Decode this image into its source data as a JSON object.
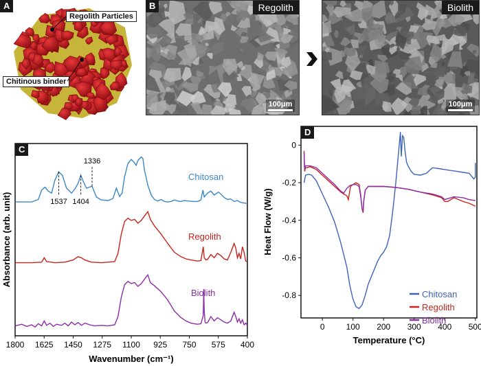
{
  "panel_a": {
    "label": "A",
    "callouts": {
      "particles": "Regolith Particles",
      "binder": "Chitinous binder"
    },
    "colors": {
      "particle": "#c8141a",
      "binder": "#c7b53a"
    }
  },
  "panel_b": {
    "label": "B",
    "images": [
      {
        "title": "Regolith",
        "scale": "100μm"
      },
      {
        "title": "Biolith",
        "scale": "100μm"
      }
    ],
    "arrow_icon": "chevron-right-icon"
  },
  "chart_data": [
    {
      "label": "C",
      "type": "line",
      "xlabel": "Wavenumber (cm⁻¹)",
      "ylabel": "Absorbance (arb. unit)",
      "xlim": [
        1800,
        400
      ],
      "xticks": [
        "1800",
        "1625",
        "1450",
        "1275",
        "1100",
        "925",
        "750",
        "575",
        "400"
      ],
      "annotations": [
        {
          "text": "1537",
          "x": 1537
        },
        {
          "text": "1404",
          "x": 1404
        },
        {
          "text": "1336",
          "x": 1336
        }
      ],
      "series": [
        {
          "name": "Chitosan",
          "color": "#3a86c8",
          "x": [
            1800,
            1700,
            1660,
            1640,
            1620,
            1600,
            1580,
            1560,
            1537,
            1515,
            1490,
            1460,
            1440,
            1420,
            1404,
            1390,
            1370,
            1336,
            1310,
            1280,
            1240,
            1210,
            1190,
            1170,
            1155,
            1140,
            1120,
            1100,
            1085,
            1070,
            1060,
            1040,
            1030,
            1020,
            1000,
            980,
            960,
            940,
            920,
            900,
            880,
            860,
            840,
            820,
            800,
            780,
            760,
            720,
            700,
            680,
            668,
            660,
            650,
            640,
            620,
            600,
            575,
            560,
            540,
            520,
            500,
            480,
            460,
            440,
            420,
            400
          ],
          "y": [
            0.04,
            0.04,
            0.09,
            0.28,
            0.34,
            0.26,
            0.22,
            0.48,
            0.65,
            0.58,
            0.32,
            0.22,
            0.3,
            0.42,
            0.58,
            0.46,
            0.32,
            0.36,
            0.14,
            0.08,
            0.07,
            0.11,
            0.32,
            0.15,
            0.22,
            0.55,
            0.82,
            0.9,
            0.85,
            0.78,
            0.88,
            0.95,
            0.92,
            0.68,
            0.38,
            0.18,
            0.09,
            0.06,
            0.09,
            0.05,
            0.04,
            0.05,
            0.08,
            0.06,
            0.05,
            0.07,
            0.06,
            0.05,
            0.05,
            0.08,
            0.28,
            0.14,
            0.18,
            0.22,
            0.26,
            0.18,
            0.24,
            0.2,
            0.13,
            0.09,
            0.1,
            0.05,
            0.07,
            0.03,
            0.02,
            0.01
          ]
        },
        {
          "name": "Regolith",
          "color": "#c8231c",
          "x": [
            1800,
            1700,
            1640,
            1625,
            1610,
            1560,
            1500,
            1450,
            1420,
            1400,
            1380,
            1340,
            1280,
            1240,
            1200,
            1180,
            1160,
            1140,
            1120,
            1100,
            1080,
            1060,
            1040,
            1020,
            1000,
            985,
            960,
            920,
            880,
            840,
            800,
            770,
            740,
            720,
            700,
            680,
            666,
            660,
            650,
            640,
            620,
            600,
            580,
            560,
            540,
            520,
            500,
            480,
            470,
            460,
            450,
            440,
            430,
            420,
            410,
            400
          ],
          "y": [
            0.03,
            0.03,
            0.04,
            0.12,
            0.05,
            0.03,
            0.04,
            0.08,
            0.14,
            0.12,
            0.08,
            0.04,
            0.03,
            0.04,
            0.05,
            0.2,
            0.55,
            0.78,
            0.84,
            0.8,
            0.82,
            0.75,
            0.8,
            0.88,
            0.96,
            0.82,
            0.7,
            0.55,
            0.38,
            0.22,
            0.14,
            0.1,
            0.08,
            0.07,
            0.06,
            0.07,
            0.32,
            0.12,
            0.08,
            0.09,
            0.18,
            0.12,
            0.2,
            0.16,
            0.1,
            0.08,
            0.22,
            0.38,
            0.3,
            0.12,
            0.2,
            0.1,
            0.32,
            0.22,
            0.06,
            0.05
          ]
        },
        {
          "name": "Biolith",
          "color": "#8b2ca8",
          "x": [
            1800,
            1760,
            1730,
            1700,
            1680,
            1660,
            1640,
            1625,
            1610,
            1590,
            1570,
            1550,
            1520,
            1500,
            1480,
            1460,
            1440,
            1420,
            1400,
            1380,
            1350,
            1320,
            1280,
            1240,
            1200,
            1180,
            1160,
            1140,
            1120,
            1100,
            1080,
            1060,
            1040,
            1020,
            1000,
            985,
            960,
            920,
            880,
            840,
            800,
            770,
            740,
            720,
            700,
            680,
            666,
            663,
            660,
            655,
            650,
            640,
            620,
            600,
            580,
            560,
            540,
            520,
            500,
            480,
            470,
            460,
            450,
            440,
            430,
            420,
            410,
            400
          ],
          "y": [
            0.03,
            0.06,
            0.02,
            0.05,
            0.01,
            0.07,
            0.03,
            0.12,
            0.04,
            0.08,
            0.02,
            0.06,
            0.04,
            0.08,
            0.03,
            0.1,
            0.05,
            0.09,
            0.04,
            0.08,
            0.05,
            0.03,
            0.04,
            0.03,
            0.05,
            0.2,
            0.55,
            0.78,
            0.84,
            0.8,
            0.82,
            0.75,
            0.8,
            0.88,
            0.96,
            0.82,
            0.76,
            0.65,
            0.5,
            0.3,
            0.18,
            0.12,
            0.08,
            0.07,
            0.06,
            0.07,
            0.22,
            0.7,
            0.3,
            0.1,
            0.08,
            0.09,
            0.2,
            0.12,
            0.18,
            0.14,
            0.1,
            0.08,
            0.12,
            0.28,
            0.2,
            0.1,
            0.16,
            0.08,
            0.14,
            0.05,
            0.08,
            0.04
          ]
        }
      ]
    },
    {
      "label": "D",
      "type": "line",
      "xlabel": "Temperature (°C)",
      "ylabel": "Heat Flow (W/g)",
      "xlim": [
        -70,
        505
      ],
      "ylim": [
        -0.92,
        0.1
      ],
      "xticks": [
        0,
        100,
        200,
        300,
        400,
        500
      ],
      "yticks": [
        0,
        -0.2,
        -0.4,
        -0.6,
        -0.8
      ],
      "legend_position": "bottom-right",
      "series": [
        {
          "name": "Chitosan",
          "color": "#3d62b8",
          "x": [
            -60,
            -55,
            -45,
            -35,
            -20,
            0,
            20,
            40,
            60,
            80,
            90,
            100,
            110,
            120,
            130,
            140,
            150,
            160,
            170,
            180,
            190,
            200,
            210,
            220,
            230,
            240,
            250,
            255,
            258,
            262,
            266,
            270,
            275,
            280,
            290,
            300,
            320,
            340,
            360,
            380,
            400,
            420,
            440,
            460,
            480,
            495,
            500,
            500
          ],
          "y": [
            -0.2,
            -0.16,
            -0.155,
            -0.16,
            -0.19,
            -0.26,
            -0.33,
            -0.41,
            -0.52,
            -0.65,
            -0.75,
            -0.82,
            -0.86,
            -0.87,
            -0.85,
            -0.8,
            -0.74,
            -0.7,
            -0.66,
            -0.62,
            -0.59,
            -0.57,
            -0.54,
            -0.48,
            -0.35,
            -0.2,
            -0.02,
            0.07,
            -0.06,
            0.05,
            0.04,
            -0.03,
            -0.09,
            -0.11,
            -0.14,
            -0.155,
            -0.16,
            -0.15,
            -0.12,
            -0.125,
            -0.13,
            -0.135,
            -0.14,
            -0.145,
            -0.15,
            -0.18,
            -0.17,
            -0.095
          ]
        },
        {
          "name": "Regolith",
          "color": "#c8231c",
          "x": [
            -60,
            -58,
            -55,
            -50,
            -40,
            -20,
            0,
            20,
            40,
            60,
            70,
            80,
            85,
            88,
            92,
            100,
            110,
            120,
            125,
            130,
            133,
            135,
            140,
            150,
            170,
            200,
            240,
            280,
            320,
            360,
            390,
            400,
            410,
            430,
            460,
            480,
            500
          ],
          "y": [
            -0.03,
            -0.14,
            -0.12,
            -0.12,
            -0.115,
            -0.13,
            -0.16,
            -0.19,
            -0.22,
            -0.25,
            -0.26,
            -0.27,
            -0.29,
            -0.26,
            -0.22,
            -0.21,
            -0.2,
            -0.21,
            -0.26,
            -0.34,
            -0.36,
            -0.3,
            -0.24,
            -0.22,
            -0.22,
            -0.22,
            -0.225,
            -0.235,
            -0.25,
            -0.265,
            -0.28,
            -0.3,
            -0.3,
            -0.28,
            -0.3,
            -0.31,
            -0.325
          ]
        },
        {
          "name": "Biolith",
          "color": "#8b2ca8",
          "x": [
            -60,
            -58,
            -55,
            -50,
            -40,
            -20,
            0,
            20,
            40,
            60,
            70,
            80,
            90,
            100,
            110,
            120,
            125,
            130,
            133,
            135,
            140,
            150,
            170,
            200,
            240,
            280,
            320,
            360,
            390,
            400,
            410,
            430,
            460,
            480,
            500
          ],
          "y": [
            -0.04,
            -0.13,
            -0.11,
            -0.11,
            -0.11,
            -0.12,
            -0.15,
            -0.18,
            -0.21,
            -0.245,
            -0.255,
            -0.23,
            -0.215,
            -0.21,
            -0.21,
            -0.22,
            -0.27,
            -0.34,
            -0.355,
            -0.3,
            -0.24,
            -0.22,
            -0.22,
            -0.22,
            -0.225,
            -0.235,
            -0.25,
            -0.26,
            -0.275,
            -0.29,
            -0.285,
            -0.275,
            -0.28,
            -0.29,
            -0.295
          ]
        }
      ]
    }
  ]
}
